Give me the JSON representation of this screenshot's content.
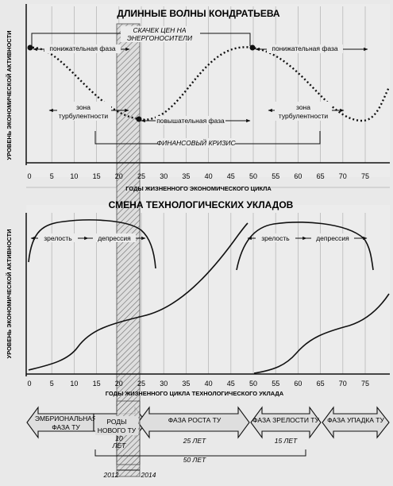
{
  "top": {
    "title": "ДЛИННЫЕ ВОЛНЫ КОНДРАТЬЕВА",
    "ylabel": "УРОВЕНЬ ЭКОНОМИЧЕСКОЙ АКТИВНОСТИ",
    "xlabel": "ГОДЫ ЖИЗНЕННОГО ЭКОНОМИЧЕСКОГО ЦИКЛА",
    "ticks": [
      "0",
      "5",
      "10",
      "15",
      "20",
      "25",
      "30",
      "35",
      "40",
      "45",
      "50",
      "55",
      "60",
      "65",
      "70",
      "75"
    ],
    "price_jump_line1": "СКАЧЕК ЦЕН НА",
    "price_jump_line2": "ЭНЕРГОНОСИТЕЛИ",
    "down_phase_1": "понижательная фаза",
    "down_phase_2": "понижательная фаза",
    "up_phase": "повышательная фаза",
    "turb_1_line1": "зона",
    "turb_1_line2": "турбулентности",
    "turb_2_line1": "зона",
    "turb_2_line2": "турбулентности",
    "fin_crisis": "ФИНАНСОВЫЙ КРИЗИС"
  },
  "bottom": {
    "title": "СМЕНА ТЕХНОЛОГИЧЕСКИХ УКЛАДОВ",
    "ylabel": "УРОВЕНЬ ЭКОНОМИЧЕСКОЙ АКТИВНОСТИ",
    "xlabel": "ГОДЫ ЖИЗНЕННОГО ЦИКЛА ТЕХНОЛОГИЧЕСКОГО УКЛАДА",
    "ticks": [
      "0",
      "5",
      "10",
      "15",
      "20",
      "25",
      "30",
      "35",
      "40",
      "45",
      "50",
      "55",
      "60",
      "65",
      "70",
      "75"
    ],
    "maturity_1": "зрелость",
    "depression_1": "депрессия",
    "maturity_2": "зрелость",
    "depression_2": "депрессия"
  },
  "phases": {
    "embryo_line1": "ЭМБРИОНАЛЬНАЯ",
    "embryo_line2": "ФАЗА ТУ",
    "birth_line1": "РОДЫ",
    "birth_line2": "НОВОГО ТУ",
    "birth_years": "10",
    "birth_years_unit": "ЛЕТ",
    "growth": "ФАЗА РОСТА ТУ",
    "growth_years": "25 ЛЕТ",
    "maturity": "ФАЗА ЗРЕЛОСТИ ТУ",
    "maturity_years": "15 ЛЕТ",
    "decline": "ФАЗА УПАДКА ТУ",
    "total_years": "50 ЛЕТ",
    "year_start": "2012",
    "year_end": "2014"
  }
}
